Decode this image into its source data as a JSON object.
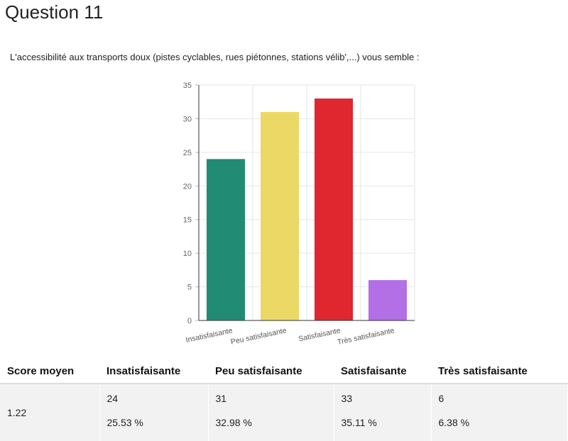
{
  "page": {
    "title": "Question 11",
    "question": "L'accessibilité aux transports doux (pistes cyclables, rues piétonnes, stations vélib',...) vous semble :"
  },
  "chart_data": {
    "type": "bar",
    "categories": [
      "Insatisfaisante",
      "Peu satisfaisante",
      "Satisfaisante",
      "Très satisfaisante"
    ],
    "values": [
      24,
      31,
      33,
      6
    ],
    "colors": [
      "#228b73",
      "#ecd965",
      "#e0262f",
      "#b26fe6"
    ],
    "yticks": [
      0,
      5,
      10,
      15,
      20,
      25,
      30,
      35
    ],
    "ylim": [
      0,
      35
    ],
    "grid": true,
    "legend": "none"
  },
  "table": {
    "headers": [
      "Score moyen",
      "Insatisfaisante",
      "Peu satisfaisante",
      "Satisfaisante",
      "Très satisfaisante"
    ],
    "score": "1.22",
    "counts": [
      "24",
      "31",
      "33",
      "6"
    ],
    "percents": [
      "25.53 %",
      "32.98 %",
      "35.11 %",
      "6.38 %"
    ]
  }
}
